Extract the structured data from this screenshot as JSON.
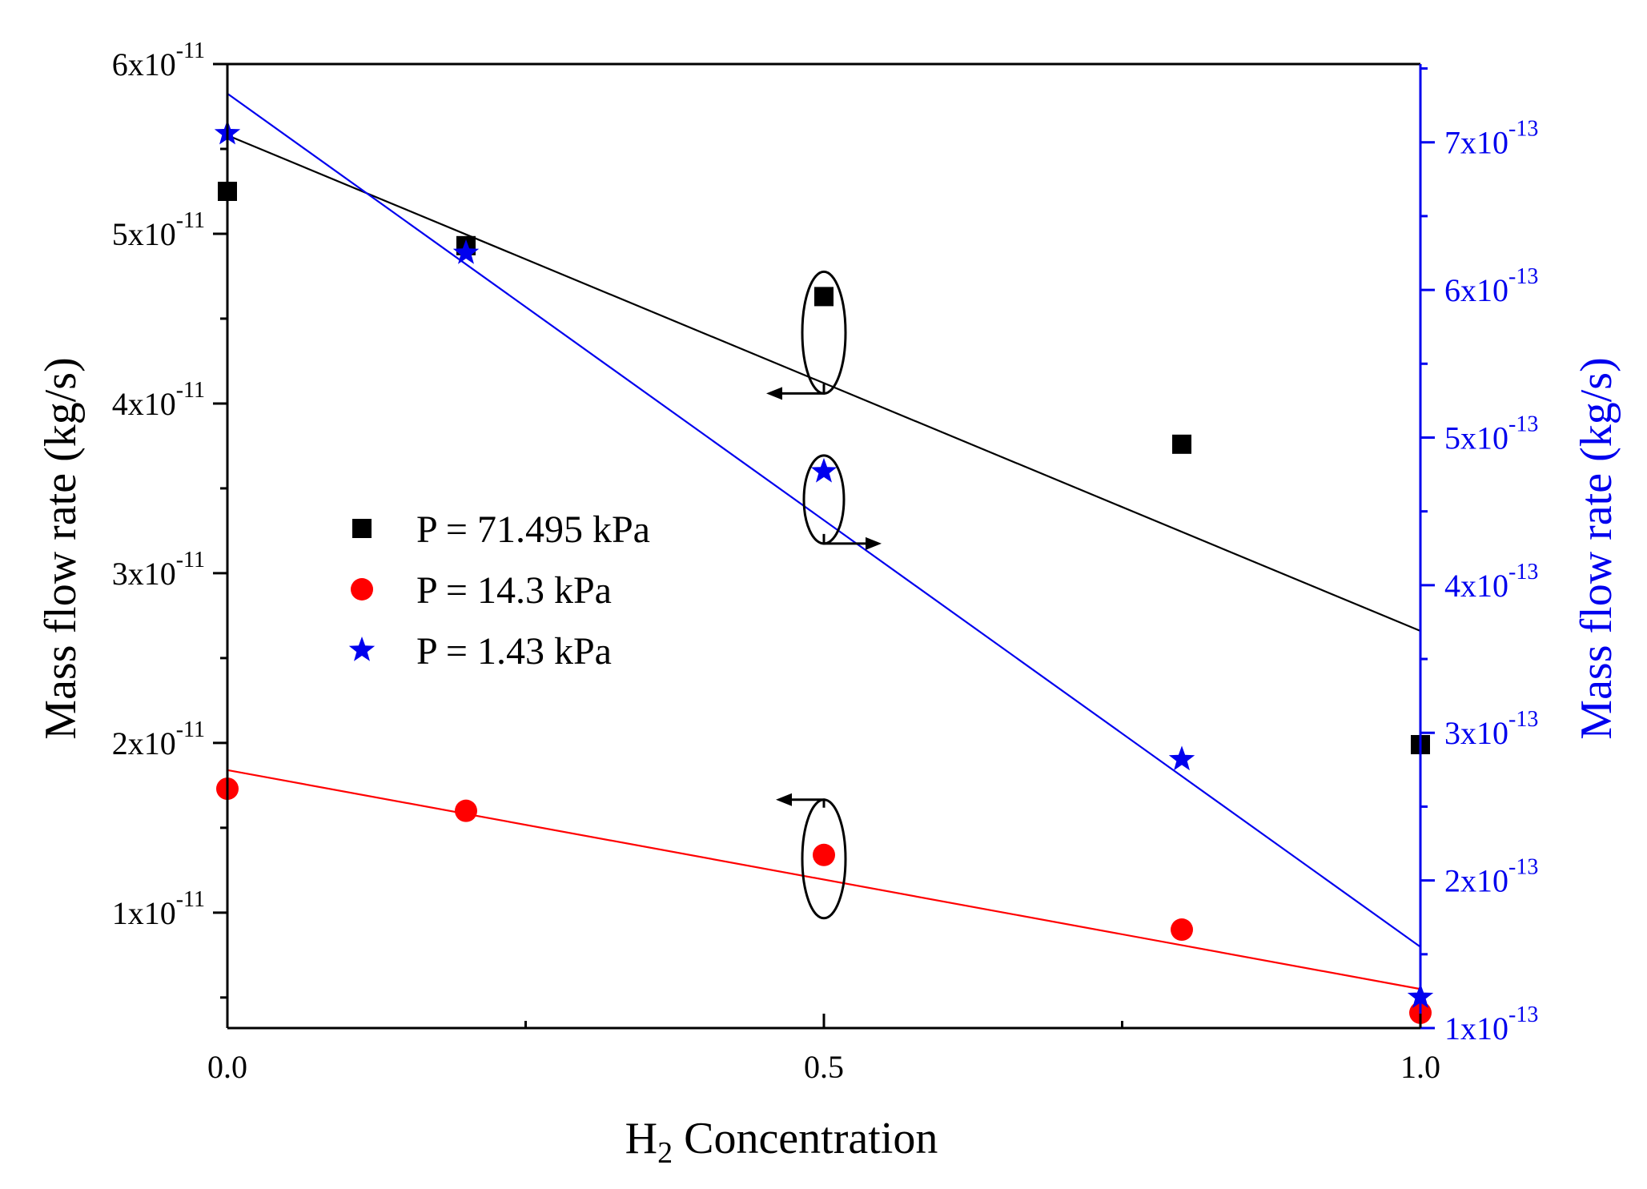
{
  "chart_data": {
    "type": "scatter",
    "xlabel": "H",
    "xlabel_sub": "2",
    "xlabel_rest": " Concentration",
    "xlim": [
      0,
      1
    ],
    "x_ticks": [
      "0.0",
      "0.5",
      "1.0"
    ],
    "y_left": {
      "label": "Mass flow rate (kg/s)",
      "range_e11": [
        0.32,
        6.0
      ],
      "ticks": [
        {
          "value": 1,
          "mant": "1x10",
          "exp": "-11"
        },
        {
          "value": 2,
          "mant": "2x10",
          "exp": "-11"
        },
        {
          "value": 3,
          "mant": "3x10",
          "exp": "-11"
        },
        {
          "value": 4,
          "mant": "4x10",
          "exp": "-11"
        },
        {
          "value": 5,
          "mant": "5x10",
          "exp": "-11"
        },
        {
          "value": 6,
          "mant": "6x10",
          "exp": "-11"
        }
      ],
      "color": "#000000"
    },
    "y_right": {
      "label": "Mass flow rate (kg/s)",
      "range_e13": [
        1.0,
        7.53
      ],
      "ticks": [
        {
          "value": 1,
          "mant": "1x10",
          "exp": "-13"
        },
        {
          "value": 2,
          "mant": "2x10",
          "exp": "-13"
        },
        {
          "value": 3,
          "mant": "3x10",
          "exp": "-13"
        },
        {
          "value": 4,
          "mant": "4x10",
          "exp": "-13"
        },
        {
          "value": 5,
          "mant": "5x10",
          "exp": "-13"
        },
        {
          "value": 6,
          "mant": "6x10",
          "exp": "-13"
        },
        {
          "value": 7,
          "mant": "7x10",
          "exp": "-13"
        }
      ],
      "color": "#0000ee"
    },
    "series": [
      {
        "name": "P = 71.495 kPa",
        "marker": "square",
        "color": "#000000",
        "axis": "left",
        "x": [
          0.0,
          0.2,
          0.5,
          0.8,
          1.0
        ],
        "y": [
          5.25,
          4.93,
          4.63,
          3.76,
          1.99
        ],
        "fit": [
          5.58,
          2.66
        ]
      },
      {
        "name": "P = 14.3 kPa",
        "marker": "circle",
        "color": "#ff0000",
        "axis": "left",
        "x": [
          0.0,
          0.2,
          0.5,
          0.8,
          1.0
        ],
        "y": [
          1.73,
          1.6,
          1.34,
          0.9,
          0.41
        ],
        "fit": [
          1.84,
          0.55
        ]
      },
      {
        "name": "P = 1.43 kPa",
        "marker": "star",
        "color": "#0000ee",
        "axis": "right",
        "x": [
          0.0,
          0.2,
          0.5,
          0.8,
          1.0
        ],
        "y": [
          7.06,
          6.25,
          4.77,
          2.82,
          1.21
        ],
        "fit": [
          7.33,
          1.55
        ]
      }
    ],
    "legend_position": "center-left",
    "annotations": [
      {
        "type": "ellipse-arrow",
        "target": "P = 71.495 kPa",
        "x": 0.5,
        "direction": "left"
      },
      {
        "type": "ellipse-arrow",
        "target": "P = 1.43 kPa",
        "x": 0.5,
        "direction": "right"
      },
      {
        "type": "ellipse-arrow",
        "target": "P = 14.3 kPa",
        "x": 0.5,
        "direction": "left"
      }
    ]
  }
}
